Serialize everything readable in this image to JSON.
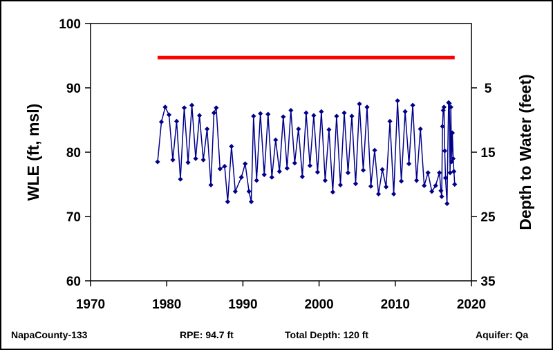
{
  "chart_data": {
    "type": "line",
    "xlim": [
      1970,
      2020
    ],
    "ylim": [
      60,
      100
    ],
    "y2lim": [
      35,
      -5
    ],
    "x_ticks": [
      1970,
      1980,
      1990,
      2000,
      2010,
      2020
    ],
    "y_ticks": [
      60,
      70,
      80,
      90,
      100
    ],
    "y2_ticks": [
      35,
      25,
      15,
      5
    ],
    "ylabel": "WLE (ft, msl)",
    "y2label": "Depth to Water (feet)",
    "grid": false,
    "colors": {
      "series": "#00008B",
      "reference": "#ff0000"
    },
    "reference_line": {
      "y": 94.7,
      "x_start": 1978.8,
      "x_end": 2017.8
    },
    "series": [
      {
        "marker": "diamond",
        "x": [
          1978.8,
          1979.3,
          1979.8,
          1980.3,
          1980.8,
          1981.3,
          1981.8,
          1982.3,
          1982.8,
          1983.3,
          1983.8,
          1984.3,
          1984.8,
          1985.3,
          1985.8,
          1986.2,
          1986.5,
          1987.0,
          1987.6,
          1988.0,
          1988.5,
          1989.0,
          1989.8,
          1990.3,
          1990.8,
          1991.1,
          1991.4,
          1991.8,
          1992.3,
          1992.8,
          1993.3,
          1993.8,
          1994.3,
          1994.8,
          1995.3,
          1995.8,
          1996.3,
          1996.8,
          1997.3,
          1997.8,
          1998.3,
          1998.8,
          1999.3,
          1999.8,
          2000.3,
          2000.8,
          2001.3,
          2001.8,
          2002.3,
          2002.8,
          2003.3,
          2003.8,
          2004.3,
          2004.8,
          2005.3,
          2005.8,
          2006.3,
          2006.8,
          2007.3,
          2007.8,
          2008.3,
          2008.8,
          2009.3,
          2009.8,
          2010.3,
          2010.8,
          2011.3,
          2011.8,
          2012.3,
          2012.8,
          2013.3,
          2013.8,
          2014.3,
          2014.8,
          2015.3,
          2015.8,
          2016.0,
          2016.1,
          2016.2,
          2016.3,
          2016.4,
          2016.5,
          2016.6,
          2016.8,
          2017.0,
          2017.1,
          2017.2,
          2017.3,
          2017.4,
          2017.5,
          2017.6,
          2017.7,
          2017.8
        ],
        "y": [
          78.5,
          84.7,
          87.0,
          85.8,
          78.8,
          84.8,
          75.8,
          86.9,
          78.4,
          87.3,
          79.0,
          85.7,
          78.8,
          83.6,
          74.9,
          86.1,
          86.9,
          77.4,
          77.8,
          72.3,
          80.9,
          73.9,
          76.1,
          78.2,
          73.9,
          72.3,
          85.6,
          75.6,
          86.0,
          76.5,
          85.9,
          76.1,
          81.9,
          77.0,
          85.5,
          77.5,
          86.5,
          78.3,
          83.6,
          76.2,
          86.1,
          77.9,
          85.7,
          76.9,
          86.3,
          75.6,
          83.5,
          73.8,
          85.6,
          74.9,
          86.1,
          76.8,
          85.6,
          75.1,
          87.5,
          77.2,
          87.0,
          74.7,
          80.3,
          73.5,
          77.3,
          74.6,
          84.8,
          73.5,
          88.0,
          75.5,
          86.3,
          78.2,
          87.3,
          75.6,
          83.6,
          74.8,
          76.8,
          73.9,
          74.8,
          76.8,
          74.0,
          73.1,
          84.0,
          86.5,
          87.0,
          80.2,
          76.0,
          72.0,
          87.7,
          87.6,
          76.8,
          87.0,
          78.5,
          83.0,
          79.0,
          77.0,
          75.0
        ]
      }
    ]
  },
  "footer": {
    "well_id": "NapaCounty-133",
    "rpe": "RPE: 94.7 ft",
    "total_depth": "Total Depth: 120 ft",
    "aquifer": "Aquifer: Qa"
  }
}
